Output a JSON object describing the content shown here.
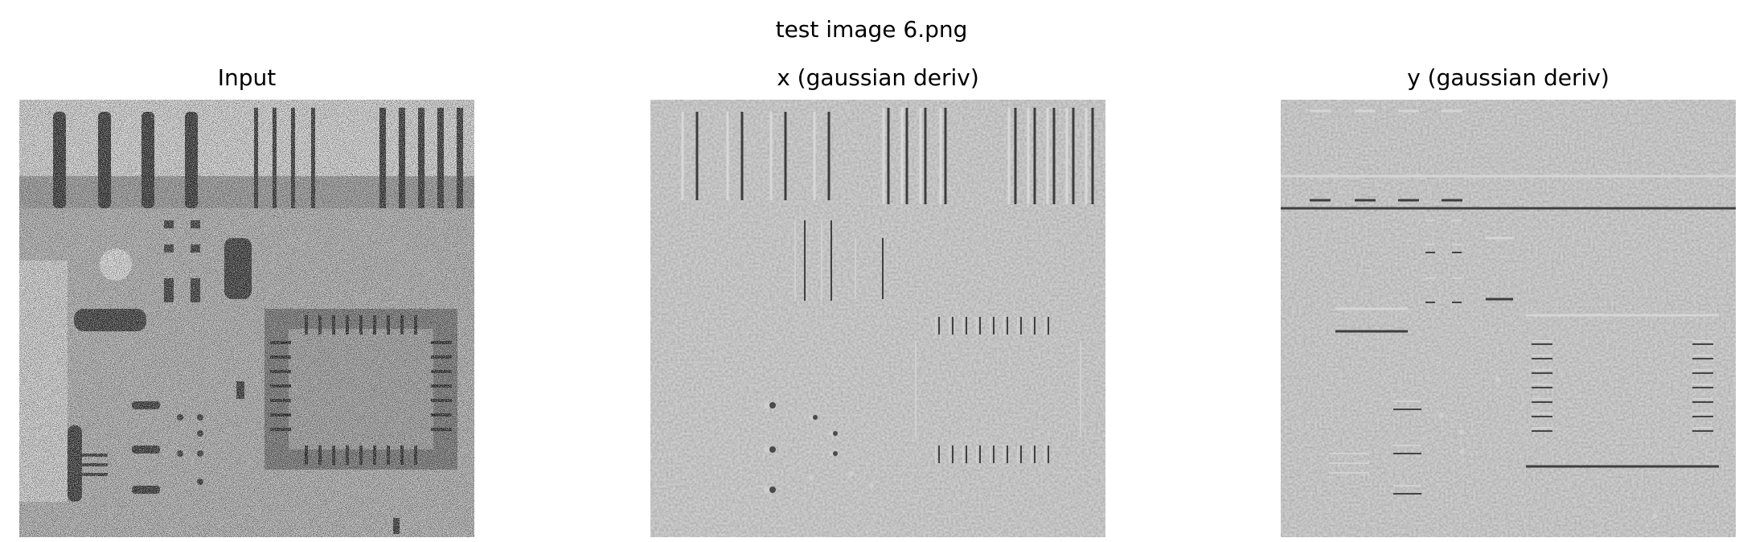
{
  "figure": {
    "title": "test image 6.png"
  },
  "panels": [
    {
      "title": "Input",
      "image_description": "noisy grayscale X-ray of a circuit board with salt-and-pepper noise"
    },
    {
      "title": "x (gaussian deriv)",
      "image_description": "horizontal Gaussian derivative response, embossed gray texture"
    },
    {
      "title": "y (gaussian deriv)",
      "image_description": "vertical Gaussian derivative response, embossed gray texture"
    }
  ]
}
